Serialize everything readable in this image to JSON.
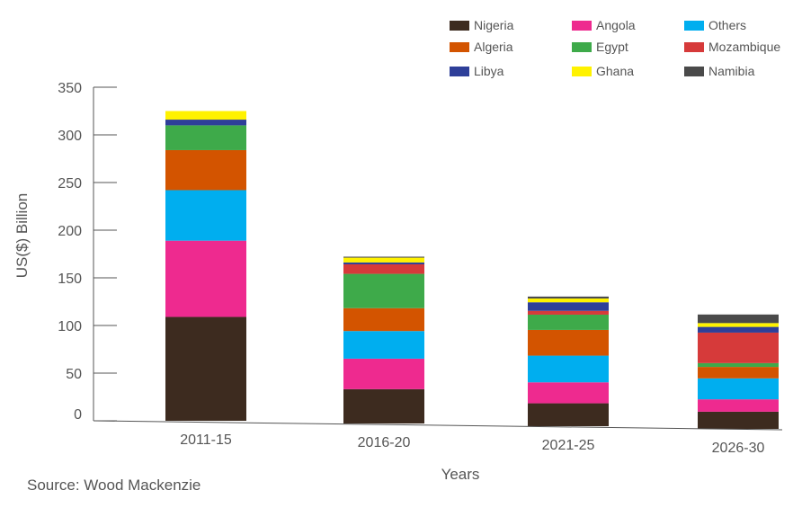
{
  "chart_data": {
    "type": "bar",
    "stacked": true,
    "title": "",
    "xlabel": "Years",
    "ylabel": "US($) Billion",
    "ylim": [
      0,
      350
    ],
    "yticks": [
      0,
      50,
      100,
      150,
      200,
      250,
      300,
      350
    ],
    "grid": false,
    "legend_position": "top-right",
    "categories": [
      "2011-15",
      "2016-20",
      "2021-25",
      "2026-30"
    ],
    "series": [
      {
        "name": "Nigeria",
        "color": "#3d2b1f",
        "values": [
          109,
          36,
          24,
          18
        ]
      },
      {
        "name": "Angola",
        "color": "#ee2a8f",
        "values": [
          80,
          32,
          22,
          13
        ]
      },
      {
        "name": "Others",
        "color": "#00aeef",
        "values": [
          53,
          29,
          28,
          22
        ]
      },
      {
        "name": "Algeria",
        "color": "#d35400",
        "values": [
          42,
          24,
          27,
          12
        ]
      },
      {
        "name": "Egypt",
        "color": "#3eaa4a",
        "values": [
          26,
          36,
          16,
          4
        ]
      },
      {
        "name": "Mozambique",
        "color": "#d63a3a",
        "values": [
          0,
          10,
          4,
          32
        ]
      },
      {
        "name": "Libya",
        "color": "#2e3f99",
        "values": [
          6,
          2,
          9,
          6
        ]
      },
      {
        "name": "Ghana",
        "color": "#fff200",
        "values": [
          9,
          5,
          4,
          4
        ]
      },
      {
        "name": "Namibia",
        "color": "#4a4a4a",
        "values": [
          0,
          1,
          2,
          9
        ]
      }
    ],
    "legend_order": [
      "Nigeria",
      "Angola",
      "Others",
      "Algeria",
      "Egypt",
      "Mozambique",
      "Libya",
      "Ghana",
      "Namibia"
    ],
    "source": "Source: Wood Mackenzie"
  }
}
